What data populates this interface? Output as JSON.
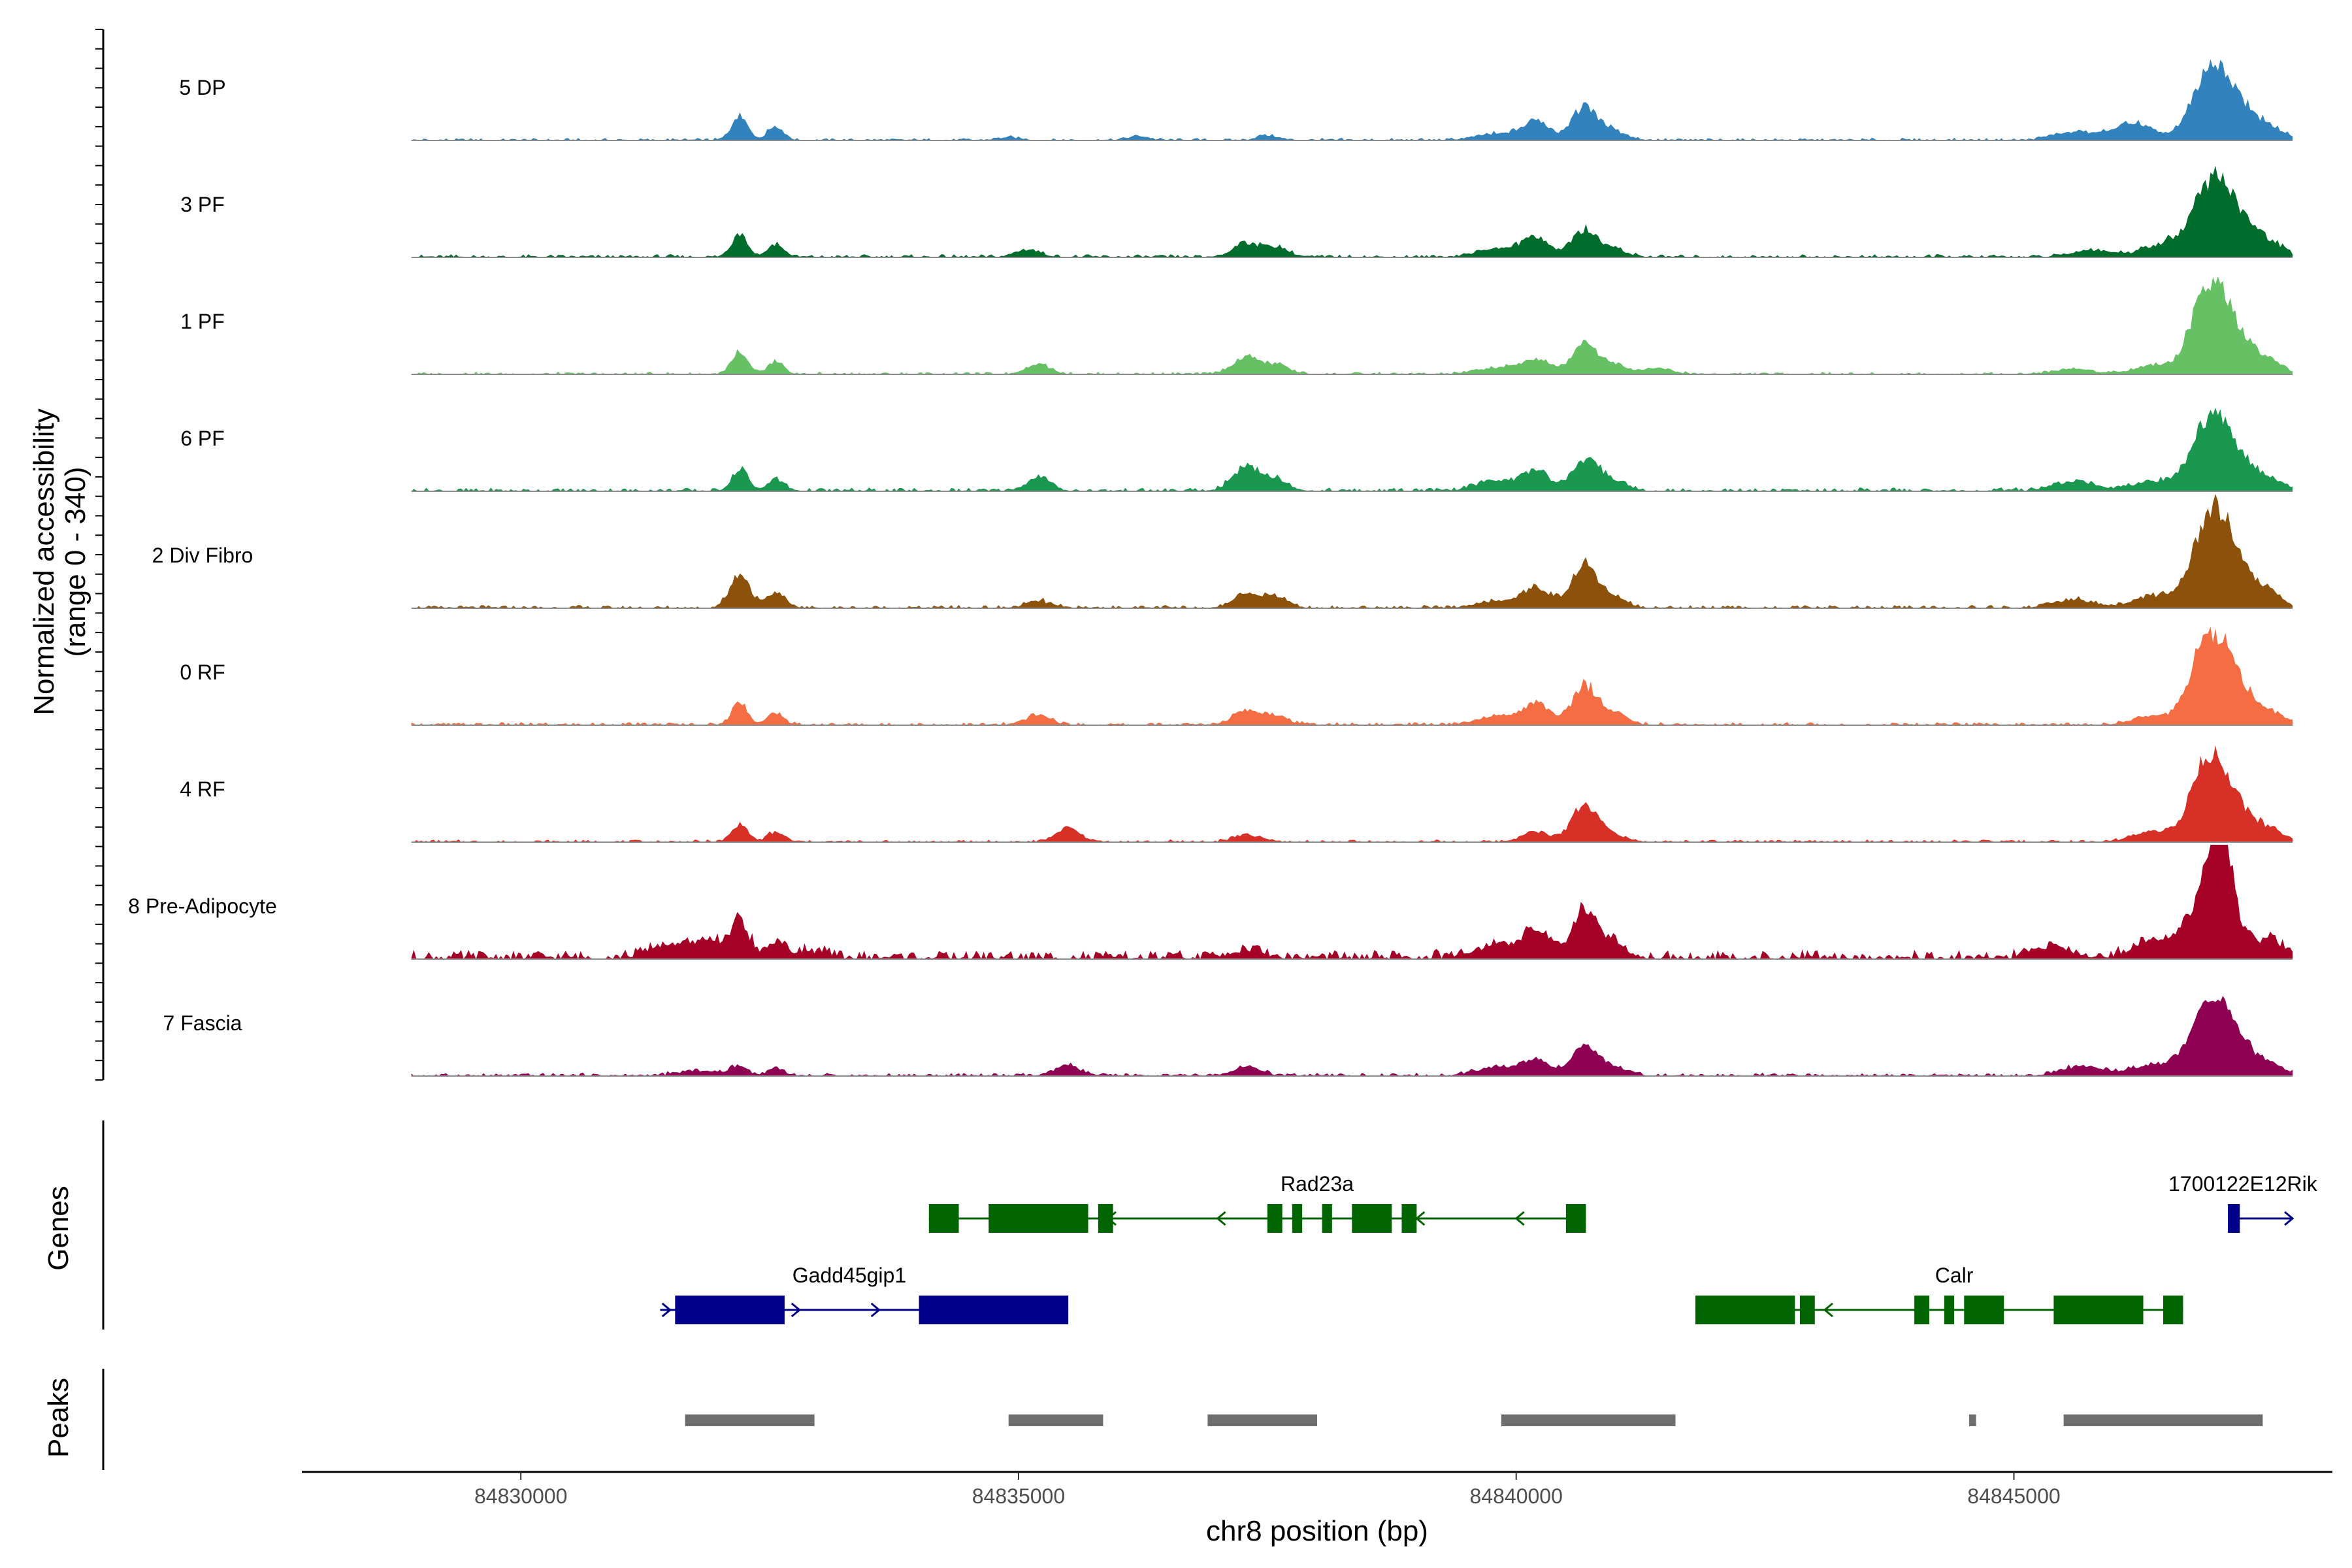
{
  "chart_data": {
    "type": "area",
    "title": "",
    "ylabel": "Normalized accessibility\n(range 0 - 340)",
    "y_range_text": "(range 0 - 340)",
    "y_title_line1": "Normalized accessibility",
    "xlabel": "chr8 position (bp)",
    "chromosome": "chr8",
    "xlim": [
      84827800,
      84848200
    ],
    "ylim": [
      0,
      340
    ],
    "x_ticks": [
      84830000,
      84835000,
      84840000,
      84845000
    ],
    "x_tick_labels": [
      "84830000",
      "84835000",
      "84840000",
      "84845000"
    ],
    "data_range": [
      84828900,
      84847800
    ],
    "series": [
      {
        "name": "5 DP",
        "color": "#3182bd",
        "noise": 1.2,
        "peaks": [
          [
            84832200,
            70,
            80
          ],
          [
            84832560,
            40,
            80
          ],
          [
            84834900,
            8,
            120
          ],
          [
            84836200,
            12,
            100
          ],
          [
            84837500,
            15,
            100
          ],
          [
            84839800,
            18,
            200
          ],
          [
            84840200,
            55,
            140
          ],
          [
            84840680,
            95,
            120
          ],
          [
            84840950,
            30,
            140
          ],
          [
            84845600,
            25,
            200
          ],
          [
            84846200,
            50,
            200
          ],
          [
            84846900,
            110,
            160
          ],
          [
            84847100,
            160,
            180
          ],
          [
            84847450,
            45,
            160
          ],
          [
            84847650,
            15,
            100
          ]
        ]
      },
      {
        "name": "3 PF",
        "color": "#006d2c",
        "noise": 1.5,
        "peaks": [
          [
            84832200,
            70,
            80
          ],
          [
            84832560,
            40,
            80
          ],
          [
            84835100,
            22,
            120
          ],
          [
            84837300,
            40,
            140
          ],
          [
            84837600,
            25,
            120
          ],
          [
            84839800,
            25,
            200
          ],
          [
            84840200,
            55,
            140
          ],
          [
            84840680,
            80,
            120
          ],
          [
            84840950,
            25,
            140
          ],
          [
            84845800,
            20,
            200
          ],
          [
            84846500,
            40,
            200
          ],
          [
            84846900,
            110,
            160
          ],
          [
            84847100,
            170,
            180
          ],
          [
            84847450,
            50,
            160
          ],
          [
            84847650,
            15,
            100
          ]
        ]
      },
      {
        "name": "1 PF",
        "color": "#66c164",
        "noise": 1.2,
        "peaks": [
          [
            84832200,
            65,
            80
          ],
          [
            84832560,
            35,
            80
          ],
          [
            84835200,
            30,
            120
          ],
          [
            84837300,
            50,
            140
          ],
          [
            84837600,
            25,
            120
          ],
          [
            84839800,
            18,
            200
          ],
          [
            84840200,
            45,
            140
          ],
          [
            84840680,
            90,
            120
          ],
          [
            84840950,
            30,
            140
          ],
          [
            84841400,
            18,
            150
          ],
          [
            84845600,
            15,
            200
          ],
          [
            84846400,
            25,
            200
          ],
          [
            84846900,
            150,
            160
          ],
          [
            84847100,
            170,
            180
          ],
          [
            84847450,
            45,
            160
          ],
          [
            84847650,
            15,
            100
          ]
        ]
      },
      {
        "name": "6 PF",
        "color": "#1a9850",
        "noise": 1.8,
        "peaks": [
          [
            84832200,
            65,
            80
          ],
          [
            84832560,
            35,
            80
          ],
          [
            84835200,
            40,
            120
          ],
          [
            84837300,
            75,
            140
          ],
          [
            84837600,
            30,
            120
          ],
          [
            84839800,
            30,
            200
          ],
          [
            84840200,
            55,
            140
          ],
          [
            84840680,
            90,
            120
          ],
          [
            84840950,
            35,
            140
          ],
          [
            84845600,
            30,
            200
          ],
          [
            84846400,
            30,
            200
          ],
          [
            84846900,
            120,
            160
          ],
          [
            84847100,
            150,
            180
          ],
          [
            84847450,
            40,
            160
          ],
          [
            84847650,
            15,
            100
          ]
        ]
      },
      {
        "name": "2 Div Fibro",
        "color": "#8c510a",
        "noise": 1.5,
        "peaks": [
          [
            84832200,
            95,
            100
          ],
          [
            84832560,
            40,
            100
          ],
          [
            84835200,
            20,
            120
          ],
          [
            84837300,
            40,
            140
          ],
          [
            84837600,
            30,
            120
          ],
          [
            84839800,
            20,
            200
          ],
          [
            84840200,
            60,
            140
          ],
          [
            84840680,
            130,
            120
          ],
          [
            84840950,
            35,
            140
          ],
          [
            84845600,
            25,
            200
          ],
          [
            84846400,
            35,
            200
          ],
          [
            84846900,
            140,
            160
          ],
          [
            84847100,
            210,
            180
          ],
          [
            84847450,
            50,
            160
          ],
          [
            84847650,
            15,
            100
          ]
        ]
      },
      {
        "name": "0 RF",
        "color": "#f46d43",
        "noise": 1.5,
        "peaks": [
          [
            84832200,
            65,
            80
          ],
          [
            84832560,
            35,
            80
          ],
          [
            84835200,
            30,
            120
          ],
          [
            84837300,
            45,
            140
          ],
          [
            84837600,
            25,
            120
          ],
          [
            84839800,
            25,
            200
          ],
          [
            84840200,
            60,
            140
          ],
          [
            84840680,
            110,
            120
          ],
          [
            84840950,
            40,
            140
          ],
          [
            84846400,
            25,
            200
          ],
          [
            84846900,
            160,
            160
          ],
          [
            84847100,
            180,
            180
          ],
          [
            84847450,
            40,
            160
          ],
          [
            84847650,
            15,
            100
          ]
        ]
      },
      {
        "name": "4 RF",
        "color": "#d73027",
        "noise": 1.2,
        "peaks": [
          [
            84832200,
            50,
            80
          ],
          [
            84832560,
            30,
            80
          ],
          [
            84835500,
            40,
            120
          ],
          [
            84837300,
            20,
            140
          ],
          [
            84840200,
            30,
            140
          ],
          [
            84840680,
            110,
            120
          ],
          [
            84840950,
            25,
            140
          ],
          [
            84846400,
            30,
            200
          ],
          [
            84846900,
            150,
            160
          ],
          [
            84847100,
            160,
            180
          ],
          [
            84847450,
            40,
            160
          ],
          [
            84847650,
            15,
            100
          ]
        ]
      },
      {
        "name": "8 Pre-Adipocyte",
        "color": "#a50026",
        "noise": 4.5,
        "peaks": [
          [
            84831500,
            40,
            200
          ],
          [
            84831900,
            50,
            120
          ],
          [
            84832200,
            110,
            90
          ],
          [
            84832560,
            50,
            90
          ],
          [
            84832900,
            20,
            150
          ],
          [
            84837300,
            25,
            150
          ],
          [
            84839800,
            40,
            200
          ],
          [
            84840200,
            80,
            140
          ],
          [
            84840680,
            140,
            120
          ],
          [
            84840950,
            50,
            140
          ],
          [
            84845400,
            30,
            200
          ],
          [
            84846400,
            55,
            200
          ],
          [
            84846900,
            170,
            160
          ],
          [
            84847100,
            280,
            120
          ],
          [
            84847450,
            50,
            160
          ],
          [
            84847650,
            20,
            100
          ]
        ]
      },
      {
        "name": "7 Fascia",
        "color": "#8e0152",
        "noise": 1.5,
        "peaks": [
          [
            84832200,
            30,
            80
          ],
          [
            84832560,
            25,
            80
          ],
          [
            84831800,
            15,
            200
          ],
          [
            84835500,
            30,
            120
          ],
          [
            84837300,
            25,
            140
          ],
          [
            84839800,
            25,
            200
          ],
          [
            84840200,
            45,
            140
          ],
          [
            84840680,
            85,
            120
          ],
          [
            84840950,
            30,
            140
          ],
          [
            84845700,
            30,
            200
          ],
          [
            84846400,
            35,
            200
          ],
          [
            84846900,
            140,
            160
          ],
          [
            84847100,
            150,
            180
          ],
          [
            84847450,
            40,
            160
          ],
          [
            84847650,
            15,
            100
          ]
        ]
      }
    ],
    "genes": {
      "title": "Genes",
      "items": [
        {
          "name": "Rad23a",
          "strand": "-",
          "color": "#006400",
          "row": 1,
          "start": 84834100,
          "end": 84840700,
          "label_pos": 84838000,
          "exons": [
            [
              84834100,
              84834400
            ],
            [
              84834700,
              84835700
            ],
            [
              84835800,
              84835950
            ],
            [
              84837500,
              84837650
            ],
            [
              84837750,
              84837850
            ],
            [
              84838050,
              84838150
            ],
            [
              84838350,
              84838750
            ],
            [
              84838850,
              84839000
            ],
            [
              84840500,
              84840700
            ]
          ],
          "arrows": [
            84835900,
            84837000,
            84839000,
            84840000
          ]
        },
        {
          "name": "1700122E12Rik",
          "strand": "+",
          "color": "#00008b",
          "row": 1,
          "start": 84847150,
          "end": 84847800,
          "label_pos": 84847300,
          "exons": [
            [
              84847150,
              84847270
            ]
          ],
          "arrows": [
            84847800
          ]
        },
        {
          "name": "Gadd45gip1",
          "strand": "+",
          "color": "#00008b",
          "row": 2,
          "start": 84831400,
          "end": 84835500,
          "label_pos": 84833300,
          "exons": [
            [
              84831550,
              84832650
            ],
            [
              84834000,
              84835500
            ]
          ],
          "arrows": [
            84831500,
            84832800,
            84833600
          ]
        },
        {
          "name": "Calr",
          "strand": "-",
          "color": "#006400",
          "row": 2,
          "start": 84841800,
          "end": 84846700,
          "label_pos": 84844400,
          "exons": [
            [
              84841800,
              84842800
            ],
            [
              84842850,
              84843000
            ],
            [
              84844000,
              84844150
            ],
            [
              84844300,
              84844400
            ],
            [
              84844500,
              84844900
            ],
            [
              84845400,
              84846300
            ],
            [
              84846500,
              84846700
            ]
          ],
          "arrows": [
            84843100
          ]
        }
      ]
    },
    "peaks": {
      "title": "Peaks",
      "color": "#6e6e6e",
      "regions": [
        [
          84831650,
          84832950
        ],
        [
          84834900,
          84835850
        ],
        [
          84836900,
          84838000
        ],
        [
          84839850,
          84841600
        ],
        [
          84844550,
          84844620
        ],
        [
          84845500,
          84847500
        ]
      ]
    }
  }
}
